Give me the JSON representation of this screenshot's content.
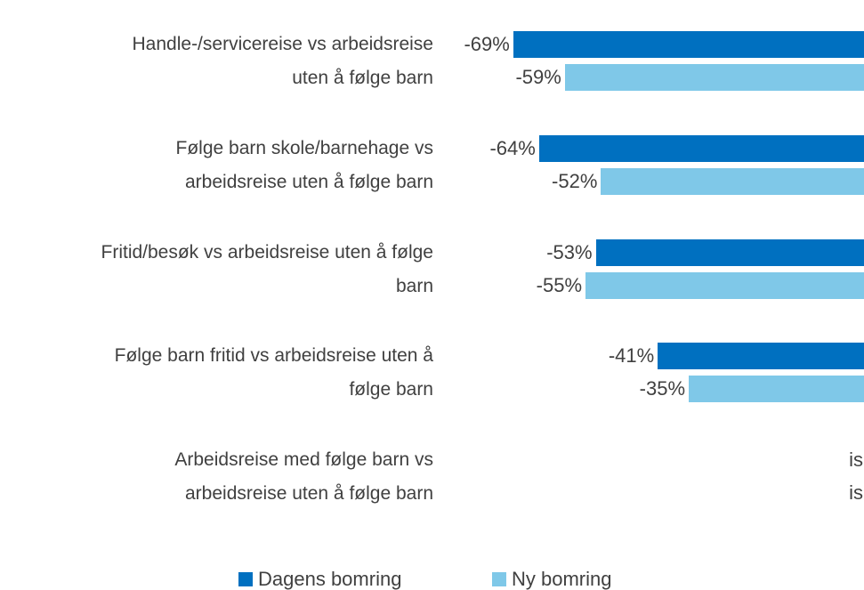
{
  "chart_data": {
    "type": "bar",
    "orientation": "horizontal",
    "categories": [
      "Handle-/servicereise vs arbeidsreise\nuten å følge barn",
      "Følge barn skole/barnehage vs\narbeidsreise uten å følge barn",
      "Fritid/besøk vs arbeidsreise uten å følge\nbarn",
      "Følge barn fritid vs arbeidsreise uten å\nfølge barn",
      "Arbeidsreise med følge barn vs\narbeidsreise uten å følge barn"
    ],
    "series": [
      {
        "name": "Dagens bomring",
        "color": "#0070c0",
        "values": [
          -69,
          -64,
          -53,
          -41,
          null
        ],
        "value_labels": [
          "-69%",
          "-64%",
          "-53%",
          "-41%",
          "is"
        ]
      },
      {
        "name": "Ny bomring",
        "color": "#7fc8e8",
        "values": [
          -59,
          -52,
          -55,
          -35,
          null
        ],
        "value_labels": [
          "-59%",
          "-52%",
          "-55%",
          "-35%",
          "is"
        ]
      }
    ],
    "xlim": [
      -70,
      0
    ]
  }
}
